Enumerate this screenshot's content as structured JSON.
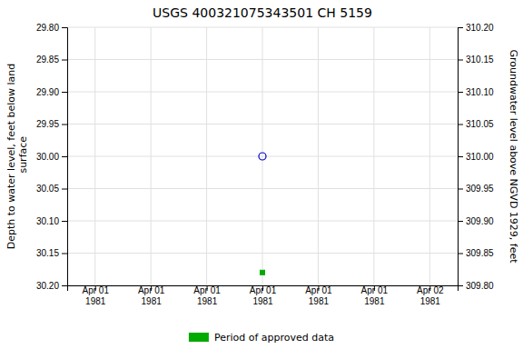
{
  "chart_data": {
    "type": "scatter",
    "title": "USGS 400321075343501 CH  5159",
    "ylabel": "Depth to water level, feet below land\n surface",
    "y2label": "Groundwater level above NGVD 1929, feet",
    "categories": [
      "Apr 01\n1981",
      "Apr 01\n1981",
      "Apr 01\n1981",
      "Apr 01\n1981",
      "Apr 01\n1981",
      "Apr 01\n1981",
      "Apr 02\n1981"
    ],
    "series": [
      {
        "color": "#0000cc",
        "marker": "circle-open",
        "values": [
          null,
          null,
          null,
          30.0,
          null,
          null,
          null
        ]
      },
      {
        "name": "Period of approved data",
        "color": "#00aa00",
        "marker": "square",
        "values": [
          null,
          null,
          null,
          30.18,
          null,
          null,
          null
        ]
      }
    ],
    "ylim": [
      30.2,
      29.8
    ],
    "yticks": [
      {
        "value": 29.8,
        "label": "29.80"
      },
      29.85,
      {
        "value": 29.9,
        "label": "29.90"
      },
      29.95,
      {
        "value": 30.0,
        "label": "30.00"
      },
      30.05,
      {
        "value": 30.1,
        "label": "30.10"
      },
      30.15,
      {
        "value": 30.2,
        "label": "30.20"
      }
    ],
    "y2lim": [
      309.8,
      310.2
    ],
    "y2ticks": [
      {
        "value": 310.2,
        "label": "310.20"
      },
      310.15,
      {
        "value": 310.1,
        "label": "310.10"
      },
      310.05,
      {
        "value": 310.0,
        "label": "310.00"
      },
      309.95,
      {
        "value": 309.9,
        "label": "309.90"
      },
      309.85,
      {
        "value": 309.8,
        "label": "309.80"
      }
    ],
    "grid": true,
    "legend": "bottom"
  }
}
